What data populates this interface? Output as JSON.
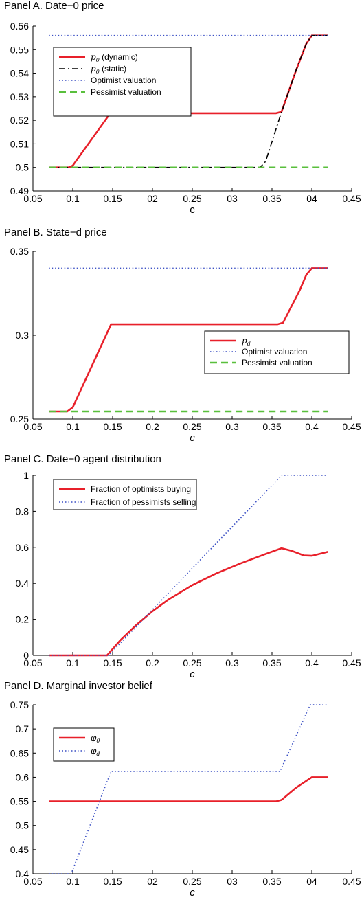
{
  "chart_data": [
    {
      "type": "line",
      "title": "Panel A. Date−0 price",
      "xlabel": "c",
      "xlim": [
        0.05,
        0.45
      ],
      "ylim": [
        0.49,
        0.56
      ],
      "xticks": [
        "0.05",
        "0.1",
        "0.15",
        "02",
        "0.25",
        "03",
        "0.35",
        "04",
        "0.45"
      ],
      "yticks": [
        "0.49",
        "0.5",
        "0.51",
        "0.52",
        "0.53",
        "0.54",
        "0.55",
        "0.56"
      ],
      "legend_position": "top-left",
      "series": [
        {
          "name": "p0 (dynamic)",
          "sym": "p",
          "sub": "0",
          "suffix": " (dynamic)",
          "style": "solid",
          "color": "#e8202a",
          "points": [
            [
              0.07,
              0.5
            ],
            [
              0.095,
              0.5
            ],
            [
              0.1,
              0.5008
            ],
            [
              0.147,
              0.523
            ],
            [
              0.355,
              0.523
            ],
            [
              0.362,
              0.5236
            ],
            [
              0.38,
              0.541
            ],
            [
              0.393,
              0.5525
            ],
            [
              0.4,
              0.556
            ],
            [
              0.42,
              0.556
            ]
          ]
        },
        {
          "name": "p0 (static)",
          "sym": "p",
          "sub": "0",
          "suffix": " (static)",
          "style": "dashdot",
          "color": "#000000",
          "points": [
            [
              0.07,
              0.5
            ],
            [
              0.335,
              0.5
            ],
            [
              0.342,
              0.5025
            ],
            [
              0.36,
              0.5215
            ],
            [
              0.38,
              0.541
            ],
            [
              0.393,
              0.5525
            ],
            [
              0.4,
              0.556
            ],
            [
              0.42,
              0.556
            ]
          ]
        },
        {
          "name": "Optimist valuation",
          "style": "dotted",
          "color": "#3a4fc4",
          "points": [
            [
              0.07,
              0.556
            ],
            [
              0.42,
              0.556
            ]
          ]
        },
        {
          "name": "Pessimist valuation",
          "style": "dashed",
          "color": "#59bf3c",
          "points": [
            [
              0.07,
              0.5
            ],
            [
              0.42,
              0.5
            ]
          ]
        }
      ]
    },
    {
      "type": "line",
      "title": "Panel B. State−d price",
      "xlabel": "c",
      "xlim": [
        0.05,
        0.45
      ],
      "ylim": [
        0.25,
        0.35
      ],
      "xticks": [
        "0.05",
        "0.1",
        "0.15",
        "0.2",
        "0.25",
        "0.3",
        "0.35",
        "0.4",
        "0.45"
      ],
      "yticks": [
        "0.25",
        "0.3",
        "0.35"
      ],
      "legend_position": "center-right",
      "series": [
        {
          "name": "pd",
          "sym": "p",
          "sub": "d",
          "suffix": "",
          "style": "solid",
          "color": "#e8202a",
          "points": [
            [
              0.07,
              0.2545
            ],
            [
              0.093,
              0.2545
            ],
            [
              0.1,
              0.257
            ],
            [
              0.148,
              0.3065
            ],
            [
              0.357,
              0.3065
            ],
            [
              0.364,
              0.3075
            ],
            [
              0.385,
              0.327
            ],
            [
              0.393,
              0.336
            ],
            [
              0.4,
              0.34
            ],
            [
              0.42,
              0.34
            ]
          ]
        },
        {
          "name": "Optimist valuation",
          "style": "dotted",
          "color": "#3a4fc4",
          "points": [
            [
              0.07,
              0.34
            ],
            [
              0.42,
              0.34
            ]
          ]
        },
        {
          "name": "Pessimist valuation",
          "style": "dashed",
          "color": "#59bf3c",
          "points": [
            [
              0.07,
              0.2545
            ],
            [
              0.42,
              0.2545
            ]
          ]
        }
      ]
    },
    {
      "type": "line",
      "title": "Panel C. Date−0 agent distribution",
      "xlabel": "c",
      "xlim": [
        0.05,
        0.45
      ],
      "ylim": [
        0,
        1
      ],
      "xticks": [
        "0.05",
        "0.1",
        "0.15",
        "0.2",
        "0.25",
        "0.3",
        "0.35",
        "0.4",
        "0.45"
      ],
      "yticks": [
        "0",
        "0.2",
        "0.4",
        "0.6",
        "0.8",
        "1"
      ],
      "legend_position": "top-left",
      "series": [
        {
          "name": "Fraction of optimists buying",
          "style": "solid",
          "color": "#e8202a",
          "points": [
            [
              0.07,
              0
            ],
            [
              0.143,
              0
            ],
            [
              0.16,
              0.085
            ],
            [
              0.18,
              0.17
            ],
            [
              0.2,
              0.245
            ],
            [
              0.22,
              0.31
            ],
            [
              0.25,
              0.39
            ],
            [
              0.28,
              0.455
            ],
            [
              0.31,
              0.51
            ],
            [
              0.34,
              0.56
            ],
            [
              0.362,
              0.595
            ],
            [
              0.375,
              0.58
            ],
            [
              0.39,
              0.555
            ],
            [
              0.4,
              0.553
            ],
            [
              0.42,
              0.575
            ]
          ]
        },
        {
          "name": "Fraction of pessimists selling",
          "style": "dotted",
          "color": "#3a4fc4",
          "points": [
            [
              0.07,
              0
            ],
            [
              0.145,
              0
            ],
            [
              0.362,
              1
            ],
            [
              0.42,
              1
            ]
          ]
        }
      ]
    },
    {
      "type": "line",
      "title": "Panel D. Marginal investor belief",
      "xlabel": "c",
      "xlim": [
        0.05,
        0.45
      ],
      "ylim": [
        0.4,
        0.75
      ],
      "xticks": [
        "0.05",
        "0.1",
        "0.15",
        "02",
        "0.25",
        "03",
        "0.35",
        "04",
        "0.45"
      ],
      "yticks": [
        "0.4",
        "0.45",
        "0.5",
        "0.55",
        "0.6",
        "0.65",
        "0.7",
        "0.75"
      ],
      "legend_position": "top-left",
      "series": [
        {
          "name": "φ0",
          "sym": "φ",
          "sub": "0",
          "suffix": "",
          "style": "solid",
          "color": "#e8202a",
          "points": [
            [
              0.07,
              0.55
            ],
            [
              0.355,
              0.55
            ],
            [
              0.362,
              0.553
            ],
            [
              0.38,
              0.578
            ],
            [
              0.4,
              0.6
            ],
            [
              0.42,
              0.6
            ]
          ]
        },
        {
          "name": "φd",
          "sym": "φ",
          "sub": "d",
          "suffix": "",
          "style": "dotted",
          "color": "#3a4fc4",
          "points": [
            [
              0.07,
              0.4
            ],
            [
              0.098,
              0.4
            ],
            [
              0.148,
              0.612
            ],
            [
              0.36,
              0.612
            ],
            [
              0.398,
              0.75
            ],
            [
              0.42,
              0.75
            ]
          ]
        }
      ]
    }
  ]
}
